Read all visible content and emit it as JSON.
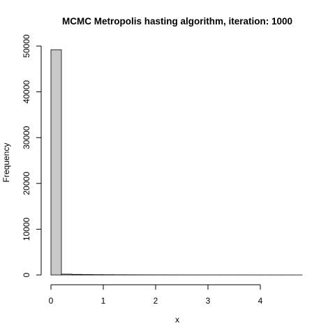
{
  "chart_data": {
    "type": "bar",
    "title": "MCMC Metropolis hasting algorithm, iteration: 1000",
    "xlabel": "x",
    "ylabel": "Frequency",
    "xlim": [
      0,
      4.8
    ],
    "ylim": [
      0,
      50000
    ],
    "xticks": [
      0,
      1,
      2,
      3,
      4
    ],
    "yticks": [
      0,
      10000,
      20000,
      30000,
      40000,
      50000
    ],
    "bin_width": 0.2,
    "bin_starts": [
      0,
      0.2,
      0.4,
      0.6,
      0.8,
      1.0,
      1.2,
      1.4,
      1.6,
      1.8,
      2.0,
      2.2,
      2.4,
      2.6,
      2.8,
      3.0,
      3.2,
      3.4,
      3.6,
      3.8,
      4.0,
      4.2,
      4.4,
      4.6
    ],
    "values": [
      49200,
      180,
      120,
      90,
      70,
      55,
      45,
      38,
      30,
      25,
      22,
      18,
      15,
      13,
      11,
      10,
      9,
      8,
      7,
      6,
      5,
      4,
      4,
      3
    ],
    "grid": false,
    "bar_color": "#c8c8c8"
  }
}
